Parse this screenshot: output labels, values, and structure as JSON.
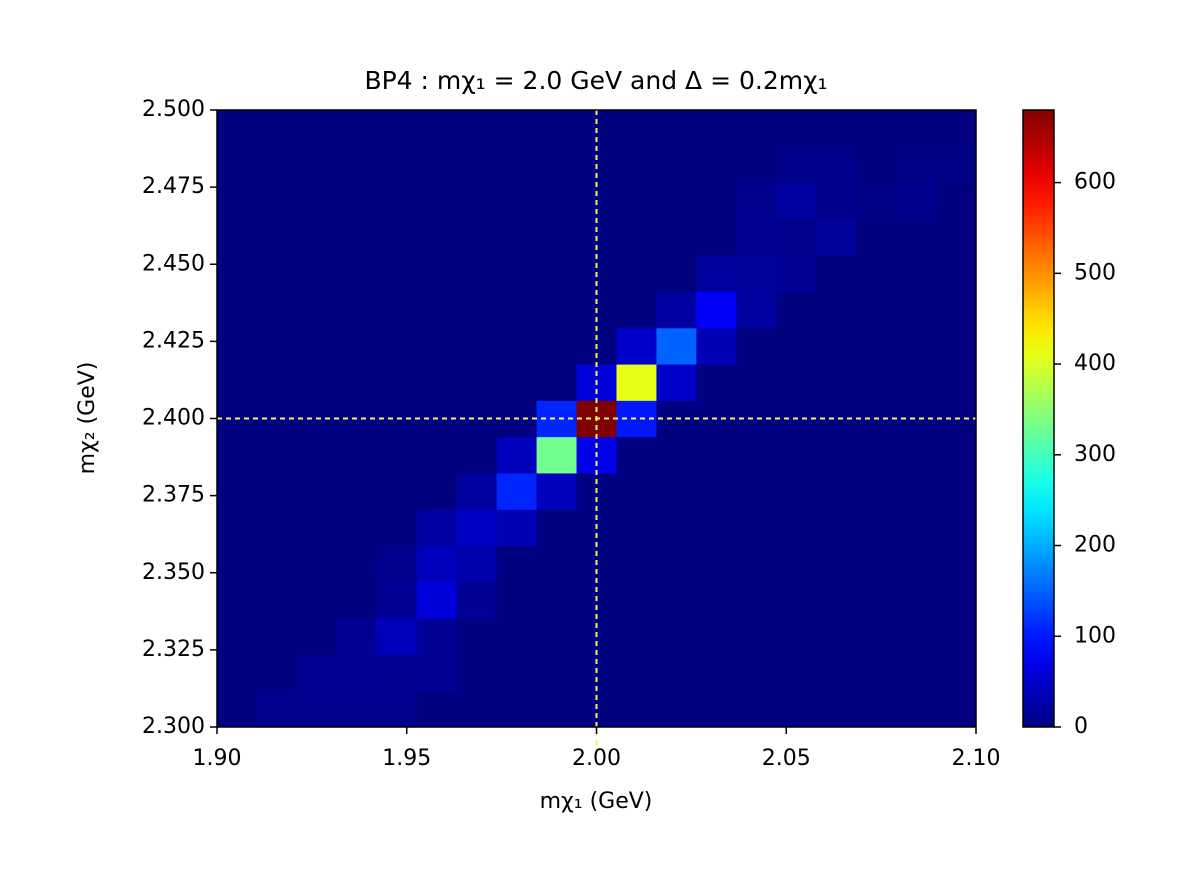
{
  "chart_data": {
    "type": "heatmap",
    "title": "BP4 : mχ₁ = 2.0 GeV and Δ = 0.2mχ₁",
    "x_label": "mχ₁ (GeV)",
    "y_label": "mχ₂ (GeV)",
    "colormap": "jet",
    "xlim": [
      1.9,
      2.1
    ],
    "ylim": [
      2.3,
      2.5
    ],
    "xticks": [
      {
        "value": 1.9,
        "label": "1.90"
      },
      1.95,
      {
        "value": 2.0,
        "label": "2.00"
      },
      2.05,
      {
        "value": 2.1,
        "label": "2.10"
      }
    ],
    "yticks": [
      {
        "value": 2.3,
        "label": "2.300"
      },
      {
        "value": 2.325,
        "label": "2.325"
      },
      {
        "value": 2.35,
        "label": "2.350"
      },
      {
        "value": 2.375,
        "label": "2.375"
      },
      {
        "value": 2.4,
        "label": "2.400"
      },
      {
        "value": 2.425,
        "label": "2.425"
      },
      {
        "value": 2.45,
        "label": "2.450"
      },
      {
        "value": 2.475,
        "label": "2.475"
      },
      {
        "value": 2.5,
        "label": "2.500"
      }
    ],
    "clim": [
      0,
      680
    ],
    "cticks": [
      0,
      100,
      200,
      300,
      400,
      500,
      600
    ],
    "reference_lines": {
      "x": 2.0,
      "y": 2.4,
      "color": "#ffee66"
    },
    "z": [
      [
        0,
        10,
        10,
        10,
        10,
        0,
        0,
        0,
        0,
        0,
        0,
        0,
        0,
        0,
        0,
        0,
        0,
        0,
        0
      ],
      [
        0,
        0,
        15,
        15,
        12,
        15,
        0,
        0,
        0,
        0,
        0,
        0,
        0,
        0,
        0,
        0,
        0,
        0,
        0
      ],
      [
        0,
        0,
        0,
        15,
        40,
        15,
        0,
        0,
        0,
        0,
        0,
        0,
        0,
        0,
        0,
        0,
        0,
        0,
        0
      ],
      [
        0,
        0,
        0,
        0,
        15,
        60,
        15,
        0,
        0,
        0,
        0,
        0,
        0,
        0,
        0,
        0,
        0,
        0,
        0
      ],
      [
        0,
        0,
        0,
        0,
        10,
        40,
        30,
        0,
        0,
        0,
        0,
        0,
        0,
        0,
        0,
        0,
        0,
        0,
        0
      ],
      [
        0,
        0,
        0,
        0,
        0,
        25,
        45,
        35,
        0,
        0,
        0,
        0,
        0,
        0,
        0,
        0,
        0,
        0,
        0
      ],
      [
        0,
        0,
        0,
        0,
        0,
        0,
        20,
        110,
        40,
        0,
        0,
        0,
        0,
        0,
        0,
        0,
        0,
        0,
        0
      ],
      [
        0,
        0,
        0,
        0,
        0,
        0,
        0,
        40,
        330,
        70,
        0,
        0,
        0,
        0,
        0,
        0,
        0,
        0,
        0
      ],
      [
        0,
        0,
        0,
        0,
        0,
        0,
        0,
        0,
        110,
        680,
        100,
        0,
        0,
        0,
        0,
        0,
        0,
        0,
        0
      ],
      [
        0,
        0,
        0,
        0,
        0,
        0,
        0,
        0,
        0,
        60,
        410,
        50,
        0,
        0,
        0,
        0,
        0,
        0,
        0
      ],
      [
        0,
        0,
        0,
        0,
        0,
        0,
        0,
        0,
        0,
        0,
        50,
        150,
        35,
        0,
        0,
        0,
        0,
        0,
        0
      ],
      [
        0,
        0,
        0,
        0,
        0,
        0,
        0,
        0,
        0,
        0,
        0,
        25,
        80,
        20,
        0,
        0,
        0,
        0,
        0
      ],
      [
        0,
        0,
        0,
        0,
        0,
        0,
        0,
        0,
        0,
        0,
        0,
        0,
        20,
        18,
        15,
        0,
        0,
        0,
        0
      ],
      [
        0,
        0,
        0,
        0,
        0,
        0,
        0,
        0,
        0,
        0,
        0,
        0,
        0,
        12,
        10,
        18,
        0,
        0,
        0
      ],
      [
        0,
        0,
        0,
        0,
        0,
        0,
        0,
        0,
        0,
        0,
        0,
        0,
        0,
        10,
        20,
        8,
        5,
        8,
        0
      ],
      [
        0,
        0,
        0,
        0,
        0,
        0,
        0,
        0,
        0,
        0,
        0,
        0,
        0,
        0,
        8,
        8,
        0,
        5,
        5
      ],
      [
        0,
        0,
        0,
        0,
        0,
        0,
        0,
        0,
        0,
        0,
        0,
        0,
        0,
        0,
        0,
        0,
        0,
        0,
        0
      ]
    ]
  }
}
